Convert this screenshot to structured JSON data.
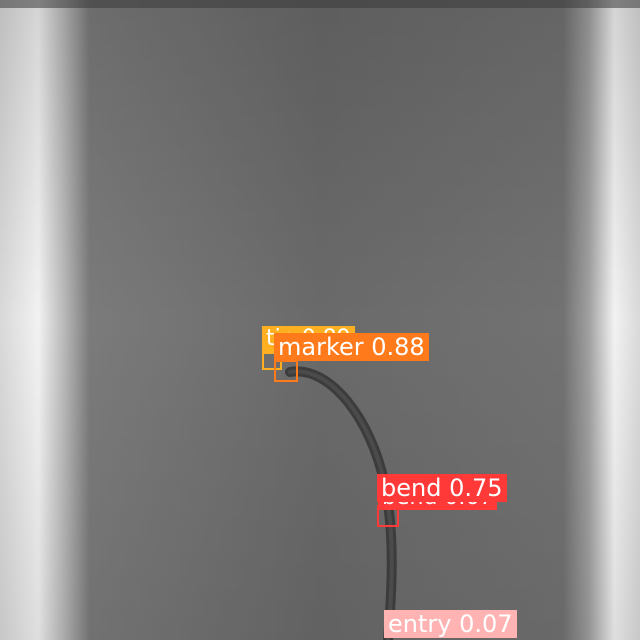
{
  "image": {
    "description_colors": {
      "background": "#6d6d6d",
      "frame_left_bright": "#e9e9e9",
      "frame_right_bright": "#f0f0f0",
      "catheter": "#3d3d3d"
    }
  },
  "detections": [
    {
      "id": "tip",
      "text": "tip 0.89",
      "color": "#ffb020"
    },
    {
      "id": "marker",
      "text": "marker 0.88",
      "color": "#ff7a1a"
    },
    {
      "id": "bend_dup",
      "text": "bend 0.67",
      "color": "#ff3838"
    },
    {
      "id": "bend",
      "text": "bend 0.75",
      "color": "#ff3838"
    },
    {
      "id": "entry",
      "text": "entry 0.07",
      "color": "#ffb3b3"
    }
  ]
}
